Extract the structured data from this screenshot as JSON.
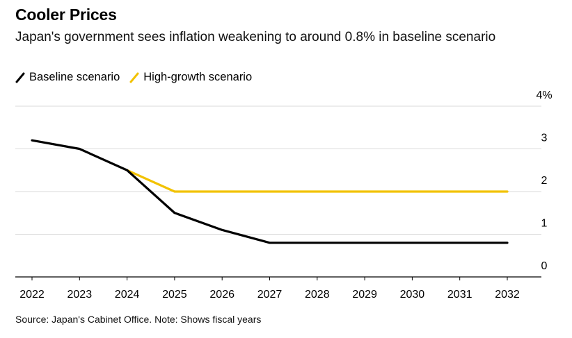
{
  "title": "Cooler Prices",
  "subtitle": "Japan's government sees inflation weakening to around 0.8% in baseline scenario",
  "source": "Source: Japan's Cabinet Office. Note: Shows fiscal years",
  "legend": [
    {
      "name": "Baseline scenario",
      "color": "#000000"
    },
    {
      "name": "High-growth scenario",
      "color": "#f2c200"
    }
  ],
  "chart_data": {
    "type": "line",
    "x": [
      2022,
      2023,
      2024,
      2025,
      2026,
      2027,
      2028,
      2029,
      2030,
      2031,
      2032
    ],
    "x_tick_labels": [
      "2022",
      "2023",
      "2024",
      "2025",
      "2026",
      "2027",
      "2028",
      "2029",
      "2030",
      "2031",
      "2032"
    ],
    "y_tick_labels": [
      "0",
      "1",
      "2",
      "3",
      "4%"
    ],
    "ylim": [
      0,
      4
    ],
    "y_ticks": [
      0,
      1,
      2,
      3,
      4
    ],
    "grid": true,
    "y_axis_position": "right",
    "legend_position": "top-left",
    "series": [
      {
        "name": "Baseline scenario",
        "color": "#000000",
        "values": [
          3.2,
          3.0,
          2.5,
          1.5,
          1.1,
          0.8,
          0.8,
          0.8,
          0.8,
          0.8,
          0.8
        ]
      },
      {
        "name": "High-growth scenario",
        "color": "#f2c200",
        "values": [
          null,
          null,
          2.5,
          2.0,
          2.0,
          2.0,
          2.0,
          2.0,
          2.0,
          2.0,
          2.0
        ]
      }
    ]
  }
}
